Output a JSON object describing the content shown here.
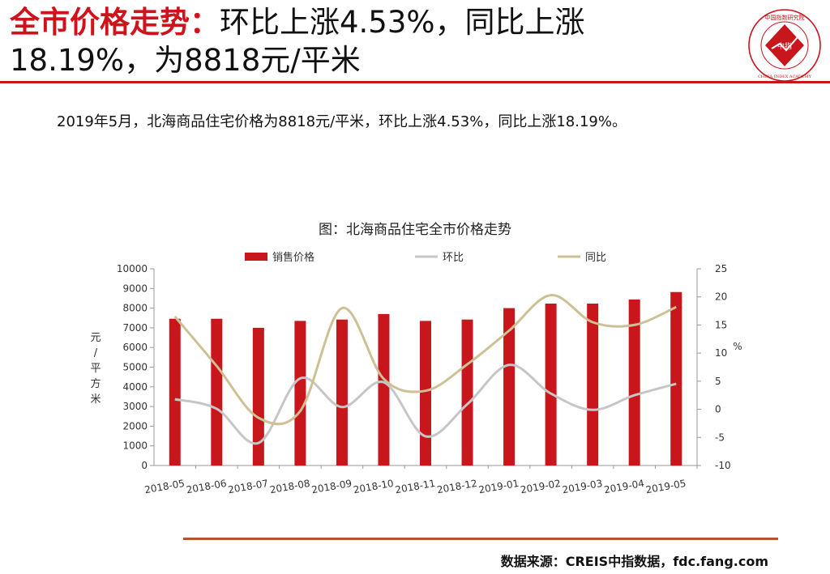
{
  "header": {
    "title_red": "全市价格走势：",
    "title_rest": "环比上涨4.53%，同比上涨18.19%，为8818元/平米",
    "logo_text": "中国指数研究院",
    "logo_center": "中指",
    "logo_english": "CHINA INDEX ACADEMY"
  },
  "summary": "2019年5月，北海商品住宅价格为8818元/平米，环比上涨4.53%，同比上涨18.19%。",
  "source": "数据来源：CREIS中指数据，fdc.fang.com",
  "colors": {
    "bar": "#c8161d",
    "mom": "#c6c6c6",
    "yoy": "#cdc095",
    "accent": "#c8161d"
  },
  "chart_data": {
    "type": "bar",
    "title": "图：北海商品住宅全市价格走势",
    "categories": [
      "2018-05",
      "2018-06",
      "2018-07",
      "2018-08",
      "2018-09",
      "2018-10",
      "2018-11",
      "2018-12",
      "2019-01",
      "2019-02",
      "2019-03",
      "2019-04",
      "2019-05"
    ],
    "series": [
      {
        "name": "销售价格",
        "type": "bar",
        "axis": "left",
        "values": [
          7460,
          7460,
          7000,
          7350,
          7420,
          7700,
          7350,
          7420,
          8000,
          8230,
          8230,
          8440,
          8818
        ]
      },
      {
        "name": "环比",
        "type": "line",
        "axis": "right",
        "values": [
          1.8,
          0.1,
          -6.0,
          5.5,
          0.4,
          4.8,
          -4.8,
          0.9,
          7.9,
          2.8,
          -0.1,
          2.5,
          4.53
        ]
      },
      {
        "name": "同比",
        "type": "line",
        "axis": "right",
        "values": [
          16.5,
          7.7,
          -1.5,
          -0.3,
          18.0,
          5.4,
          3.3,
          8.0,
          14.0,
          20.3,
          15.5,
          15.0,
          18.19
        ]
      }
    ],
    "ylabel": "元/平方米",
    "ylabel_right": "%",
    "ylim": [
      0,
      10000
    ],
    "y_ticks": [
      "0",
      "1000",
      "2000",
      "3000",
      "4000",
      "5000",
      "6000",
      "7000",
      "8000",
      "9000",
      "10000"
    ],
    "ylim_right": [
      -10,
      25
    ],
    "y2_ticks": [
      "-10",
      "-5",
      "0",
      "5",
      "10",
      "15",
      "20",
      "25"
    ],
    "legend_position": "top",
    "grid": false
  }
}
